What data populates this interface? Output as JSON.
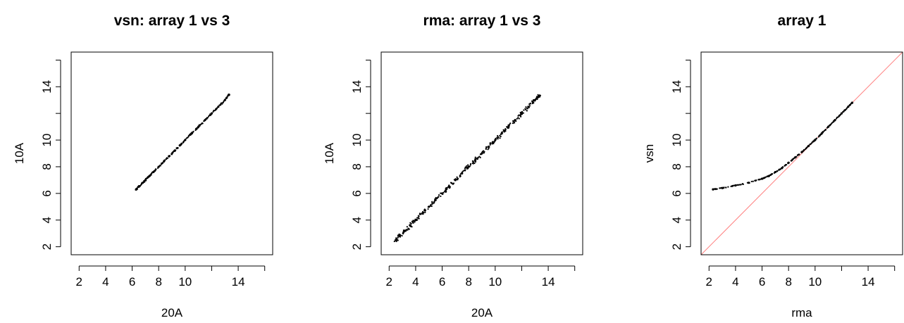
{
  "chart_data": [
    {
      "type": "scatter",
      "title": "vsn: array 1 vs 3",
      "xlabel": "20A",
      "ylabel": "10A",
      "xlim": [
        1.4,
        16.6
      ],
      "ylim": [
        1.4,
        16.6
      ],
      "xticks": [
        2,
        4,
        6,
        8,
        10,
        14
      ],
      "yticks": [
        2,
        4,
        6,
        8,
        10,
        14
      ],
      "grid": false,
      "series": [
        {
          "x": [
            6.3,
            6.5,
            6.8,
            7.0,
            7.3,
            7.6,
            8.0,
            8.4,
            8.8,
            9.2,
            9.6,
            10.0,
            10.5,
            11.0,
            11.5,
            12.0,
            12.5,
            13.0,
            13.3
          ],
          "y": [
            6.3,
            6.5,
            6.8,
            7.0,
            7.3,
            7.6,
            8.0,
            8.4,
            8.8,
            9.2,
            9.6,
            10.0,
            10.5,
            11.0,
            11.5,
            12.0,
            12.5,
            13.0,
            13.4
          ]
        }
      ]
    },
    {
      "type": "scatter",
      "title": "rma: array 1 vs 3",
      "xlabel": "20A",
      "ylabel": "10A",
      "xlim": [
        1.4,
        16.6
      ],
      "ylim": [
        1.4,
        16.6
      ],
      "xticks": [
        2,
        4,
        6,
        8,
        10,
        14
      ],
      "yticks": [
        2,
        4,
        6,
        8,
        10,
        14
      ],
      "grid": false,
      "series": [
        {
          "x": [
            2.5,
            2.8,
            3.2,
            3.6,
            4.0,
            4.5,
            5.0,
            5.5,
            6.0,
            6.5,
            7.0,
            7.5,
            8.0,
            8.5,
            9.0,
            9.5,
            10.0,
            10.5,
            11.0,
            11.5,
            12.0,
            12.5,
            13.0,
            13.3
          ],
          "y": [
            2.5,
            2.8,
            3.2,
            3.6,
            4.0,
            4.5,
            5.0,
            5.5,
            6.0,
            6.5,
            7.0,
            7.5,
            8.0,
            8.5,
            9.0,
            9.5,
            10.0,
            10.5,
            11.0,
            11.5,
            12.0,
            12.5,
            13.0,
            13.3
          ]
        }
      ]
    },
    {
      "type": "scatter",
      "title": "array 1",
      "xlabel": "rma",
      "ylabel": "vsn",
      "xlim": [
        1.4,
        16.6
      ],
      "ylim": [
        1.4,
        16.6
      ],
      "xticks": [
        2,
        4,
        6,
        8,
        10,
        14
      ],
      "yticks": [
        2,
        4,
        6,
        8,
        10,
        14
      ],
      "grid": false,
      "reference_line": {
        "slope": 1,
        "intercept": 0,
        "color": "#ff8080"
      },
      "series": [
        {
          "x": [
            2.3,
            3.0,
            4.0,
            5.0,
            6.0,
            6.5,
            7.0,
            7.5,
            8.0,
            8.5,
            9.0,
            9.5,
            10.0,
            10.5,
            11.0,
            11.5,
            12.0,
            12.5,
            12.8
          ],
          "y": [
            6.3,
            6.4,
            6.6,
            6.8,
            7.1,
            7.3,
            7.6,
            7.9,
            8.3,
            8.7,
            9.1,
            9.55,
            10.0,
            10.5,
            11.0,
            11.5,
            12.0,
            12.5,
            12.8
          ]
        }
      ]
    }
  ]
}
